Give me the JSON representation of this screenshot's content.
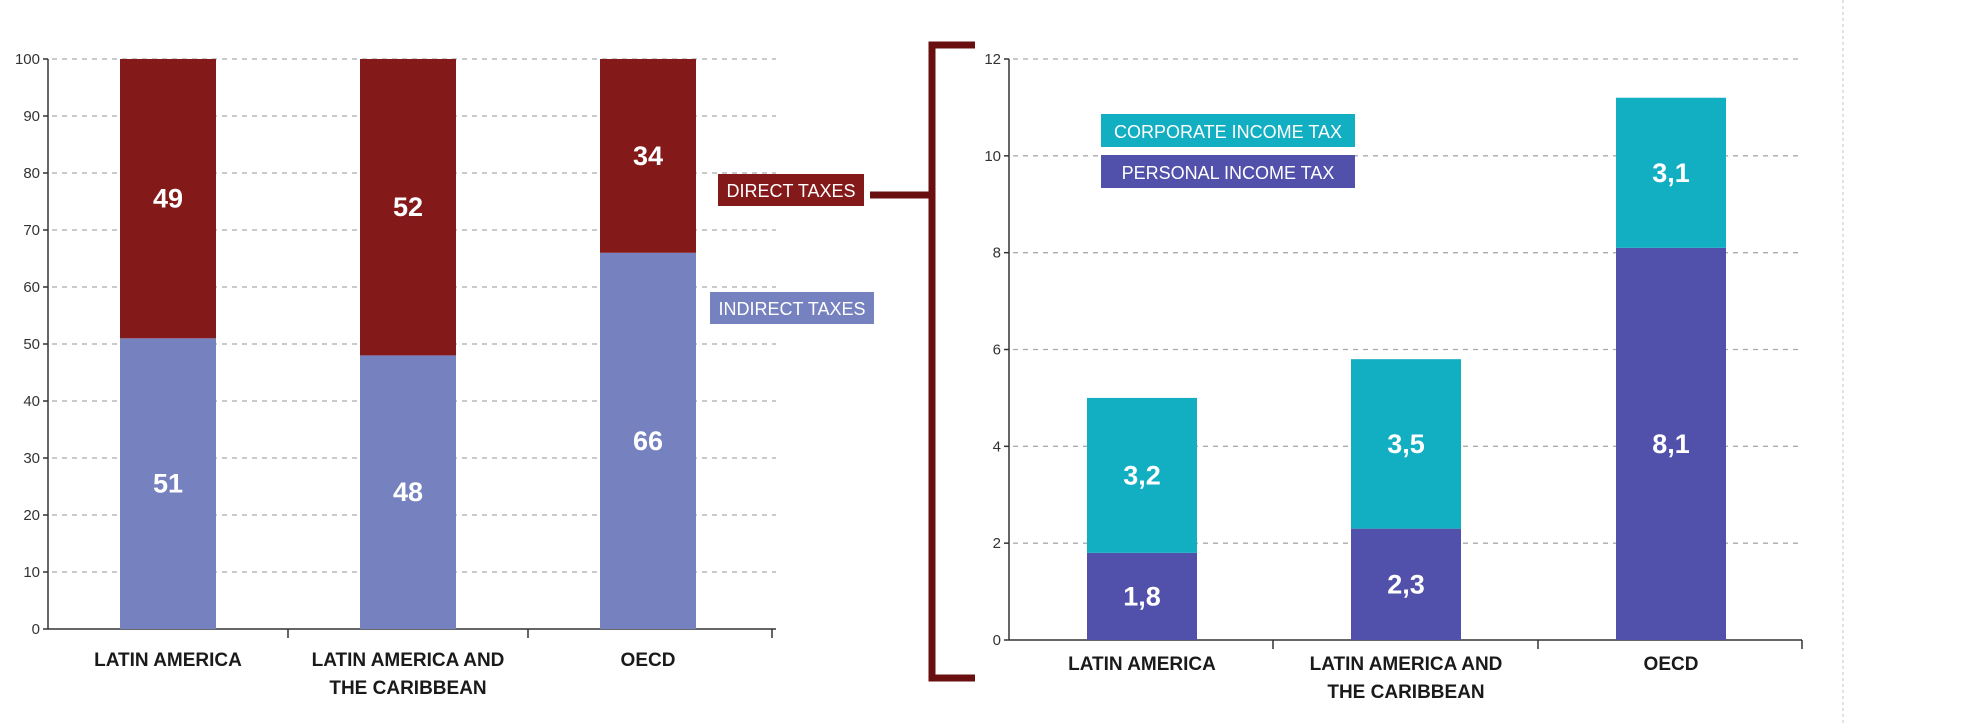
{
  "colors": {
    "direct": "#84191a",
    "indirect": "#7681bf",
    "corporate": "#12aec2",
    "personal": "#5150ab",
    "bracket": "#6a0f10",
    "grid": "#aaaaaa",
    "axis": "#333333"
  },
  "chart_data": [
    {
      "type": "bar",
      "stacked": true,
      "categories": [
        [
          "LATIN AMERICA"
        ],
        [
          "LATIN AMERICA AND",
          "THE CARIBBEAN"
        ],
        [
          "OECD"
        ]
      ],
      "series": [
        {
          "name": "INDIRECT TAXES",
          "values": [
            51,
            48,
            66
          ],
          "labels": [
            "51",
            "48",
            "66"
          ]
        },
        {
          "name": "DIRECT TAXES",
          "values": [
            49,
            52,
            34
          ],
          "labels": [
            "49",
            "52",
            "34"
          ]
        }
      ],
      "ylim": [
        0,
        100
      ],
      "yticks": [
        "0",
        "10",
        "20",
        "30",
        "40",
        "50",
        "60",
        "70",
        "80",
        "90",
        "100"
      ],
      "grid": true
    },
    {
      "type": "bar",
      "stacked": true,
      "categories": [
        [
          "LATIN AMERICA"
        ],
        [
          "LATIN AMERICA AND",
          "THE CARIBBEAN"
        ],
        [
          "OECD"
        ]
      ],
      "series": [
        {
          "name": "PERSONAL INCOME TAX",
          "values": [
            1.8,
            2.3,
            8.1
          ],
          "labels": [
            "1,8",
            "2,3",
            "8,1"
          ]
        },
        {
          "name": "CORPORATE INCOME TAX",
          "values": [
            3.2,
            3.5,
            3.1
          ],
          "labels": [
            "3,2",
            "3,5",
            "3,1"
          ]
        }
      ],
      "ylim": [
        0,
        12
      ],
      "yticks": [
        "0",
        "2",
        "4",
        "6",
        "8",
        "10",
        "12"
      ],
      "grid": true,
      "legend": "top-left"
    }
  ]
}
